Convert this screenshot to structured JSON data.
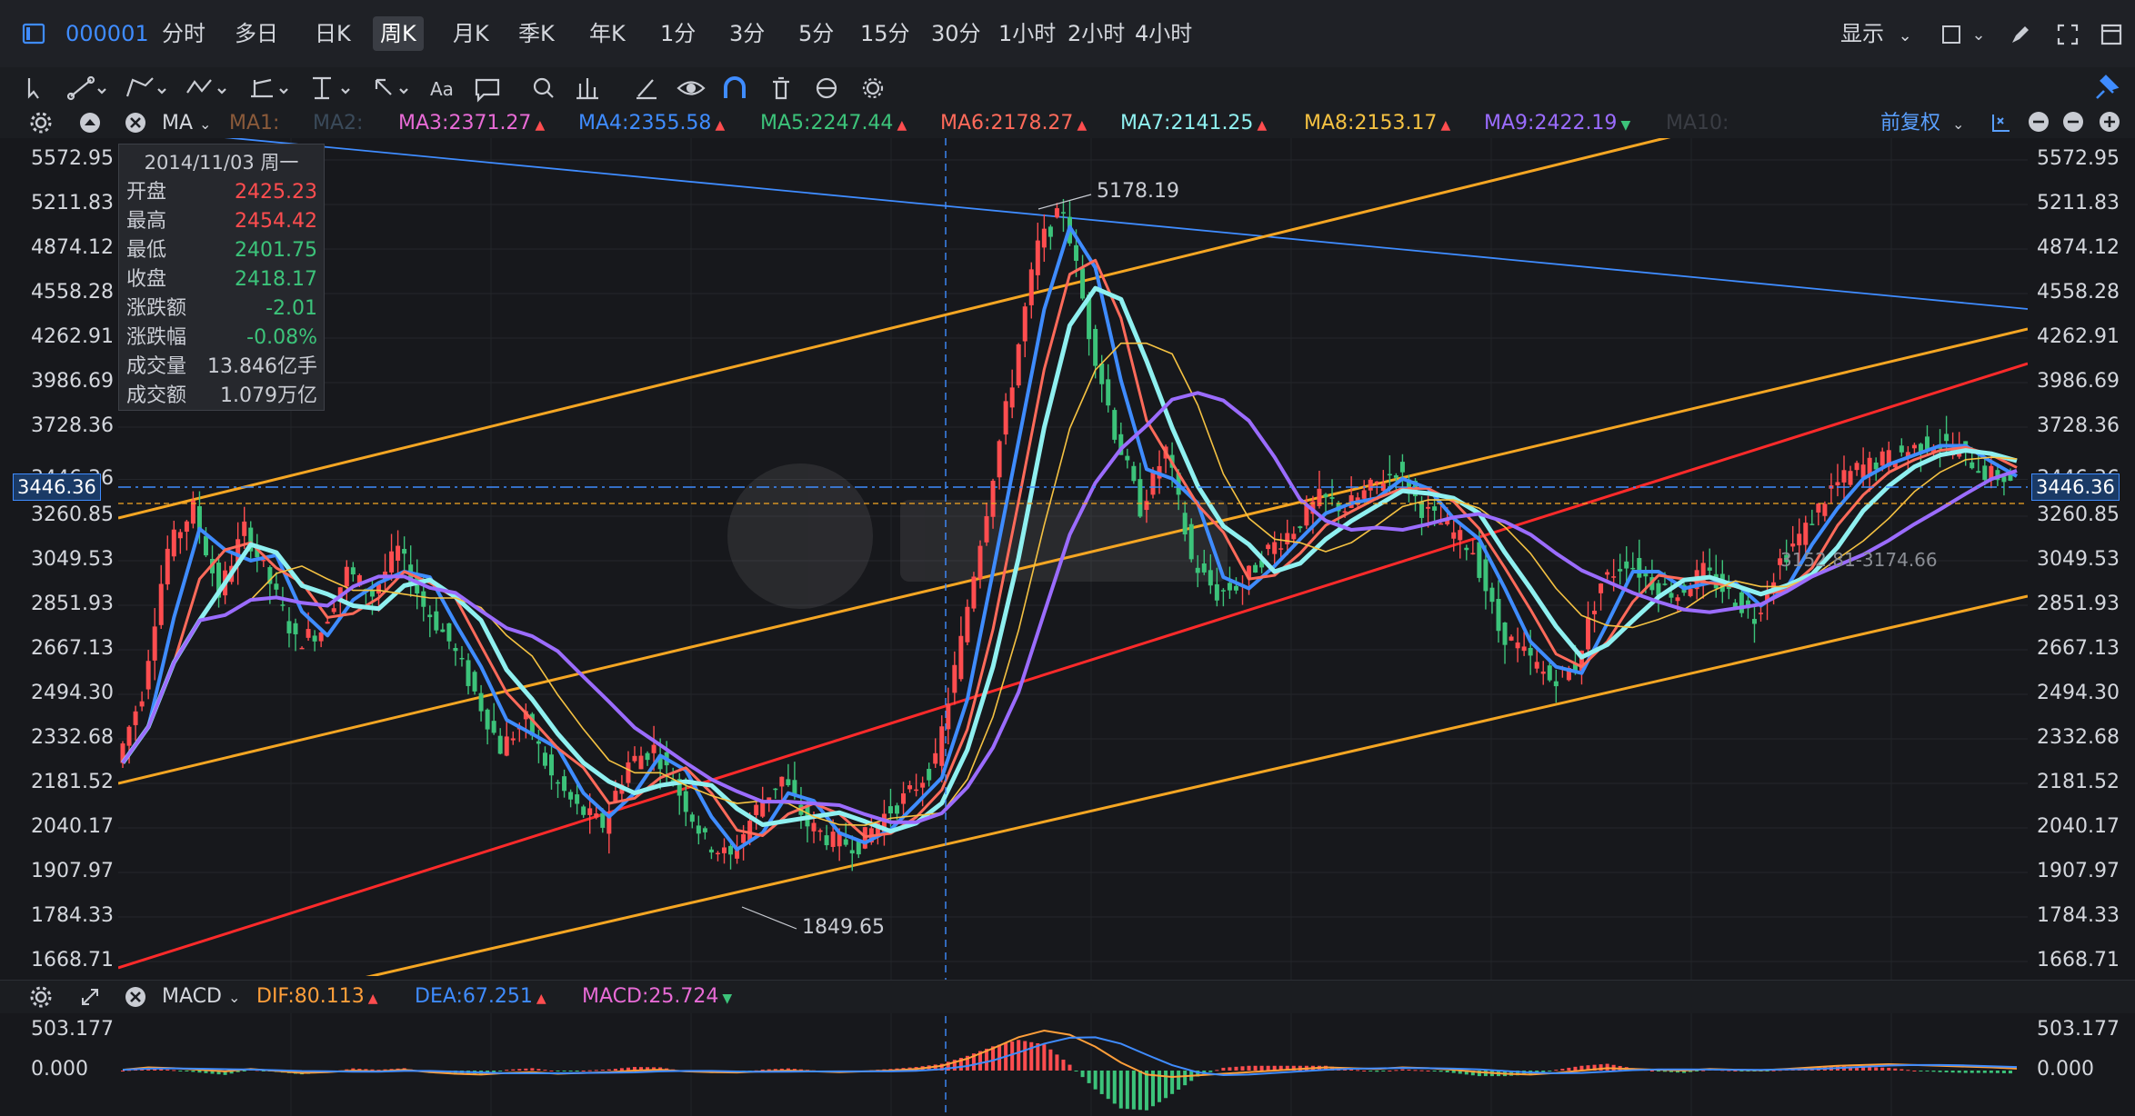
{
  "header": {
    "symbol_code": "000001",
    "timeframes": [
      "分时",
      "多日",
      "日K",
      "周K",
      "月K",
      "季K",
      "年K",
      "1分",
      "3分",
      "5分",
      "15分",
      "30分",
      "1小时",
      "2小时",
      "4小时"
    ],
    "active_timeframe_index": 3,
    "display_label": "显示"
  },
  "toolbar": {
    "icons": [
      "cursor-icon",
      "trendline-icon",
      "polyline-icon",
      "wave-icon",
      "ruler-icon",
      "fib-icon",
      "arrow-icon",
      "text-icon",
      "note-icon",
      "search-icon",
      "compare-icon",
      "brush-icon",
      "eye-icon",
      "magnet-icon",
      "trash-icon",
      "sync-icon",
      "gear-icon"
    ],
    "text_tool_label": "Aa"
  },
  "indicator_bar": {
    "indicator": "MA",
    "items": [
      {
        "label": "MA1:",
        "value": "",
        "color": "#8a5a3a"
      },
      {
        "label": "MA2:",
        "value": "",
        "color": "#3a4a5a"
      },
      {
        "label": "MA3:",
        "value": "2371.27",
        "color": "#e86bd6",
        "trend": "▲"
      },
      {
        "label": "MA4:",
        "value": "2355.58",
        "color": "#3f8cff",
        "trend": "▲"
      },
      {
        "label": "MA5:",
        "value": "2247.44",
        "color": "#3cc37a",
        "trend": "▲"
      },
      {
        "label": "MA6:",
        "value": "2178.27",
        "color": "#ff6a5a",
        "trend": "▲"
      },
      {
        "label": "MA7:",
        "value": "2141.25",
        "color": "#8ff0f0",
        "trend": "▲"
      },
      {
        "label": "MA8:",
        "value": "2153.17",
        "color": "#f5c242",
        "trend": "▲"
      },
      {
        "label": "MA9:",
        "value": "2422.19",
        "color": "#9b6cff",
        "trend": "▼"
      },
      {
        "label": "MA10:",
        "value": "",
        "color": "#3a3d44"
      }
    ],
    "adjust_label": "前复权"
  },
  "info_box": {
    "date": "2014/11/03 周一",
    "rows": [
      {
        "k": "开盘",
        "v": "2425.23",
        "color": "#ff4d4f"
      },
      {
        "k": "最高",
        "v": "2454.42",
        "color": "#ff4d4f"
      },
      {
        "k": "最低",
        "v": "2401.75",
        "color": "#3cc37a"
      },
      {
        "k": "收盘",
        "v": "2418.17",
        "color": "#3cc37a"
      },
      {
        "k": "涨跌额",
        "v": "-2.01",
        "color": "#3cc37a"
      },
      {
        "k": "涨跌幅",
        "v": "-0.08%",
        "color": "#3cc37a"
      },
      {
        "k": "成交量",
        "v": "13.846亿手",
        "color": "#c9ccd3"
      },
      {
        "k": "成交额",
        "v": "1.079万亿",
        "color": "#c9ccd3"
      }
    ]
  },
  "annotations": {
    "high_label": "5178.19",
    "low_label": "1849.65",
    "current_price": "3446.36",
    "range_label": "3152.81-3174.66"
  },
  "macd_bar": {
    "indicator": "MACD",
    "dif": "DIF:80.113",
    "dea": "DEA:67.251",
    "macd": "MACD:25.724",
    "dif_color": "#ff9f3a",
    "dea_color": "#3f8cff",
    "macd_color": "#e86bd6",
    "dif_trend": "▲",
    "dea_trend": "▲",
    "macd_trend": "▼"
  },
  "colors": {
    "up": "#ff4d4f",
    "down": "#3cc37a",
    "accent": "#3f8cff",
    "channel": "#f5a623",
    "redline": "#ff2a2a"
  },
  "chart_data": {
    "type": "candlestick",
    "y_axis_ticks": [
      "5572.95",
      "5211.83",
      "4874.12",
      "4558.28",
      "4262.91",
      "3986.69",
      "3728.36",
      "3446.36",
      "3260.85",
      "3049.53",
      "2851.93",
      "2667.13",
      "2494.30",
      "2332.68",
      "2181.52",
      "2040.17",
      "1907.97",
      "1784.33",
      "1668.71"
    ],
    "macd_axis_ticks": [
      "503.177",
      "0.000"
    ],
    "scale": "log",
    "ylim": [
      1668.71,
      5572.95
    ],
    "close_series_approx": [
      2250,
      2500,
      3100,
      3300,
      2900,
      3200,
      2950,
      2700,
      2750,
      3000,
      2900,
      3100,
      2850,
      2700,
      2500,
      2300,
      2400,
      2200,
      2100,
      2050,
      2250,
      2300,
      2150,
      2000,
      1950,
      2100,
      2200,
      2050,
      2000,
      1990,
      2080,
      2150,
      2250,
      2700,
      3300,
      4000,
      4900,
      5178,
      4300,
      3700,
      3300,
      3600,
      3050,
      2900,
      2950,
      3100,
      3200,
      3350,
      3300,
      3400,
      3500,
      3300,
      3200,
      3100,
      2750,
      2650,
      2550,
      2600,
      2950,
      3050,
      2950,
      2900,
      3000,
      2900,
      2800,
      3050,
      3200,
      3400,
      3500,
      3550,
      3600,
      3650,
      3600,
      3480,
      3446
    ],
    "macd_dif_approx": [
      10,
      40,
      30,
      10,
      -10,
      20,
      -5,
      -30,
      -20,
      0,
      -10,
      10,
      -20,
      -40,
      -50,
      -30,
      -20,
      -40,
      -30,
      -20,
      0,
      10,
      -10,
      -20,
      -25,
      -10,
      0,
      -10,
      -20,
      -10,
      0,
      20,
      60,
      150,
      280,
      420,
      503,
      450,
      300,
      100,
      -50,
      -80,
      -60,
      -40,
      -20,
      0,
      20,
      40,
      30,
      20,
      40,
      30,
      10,
      -20,
      -40,
      -50,
      -30,
      0,
      30,
      20,
      10,
      0,
      20,
      10,
      5,
      20,
      40,
      60,
      70,
      80,
      70,
      60,
      50,
      40,
      25
    ]
  }
}
